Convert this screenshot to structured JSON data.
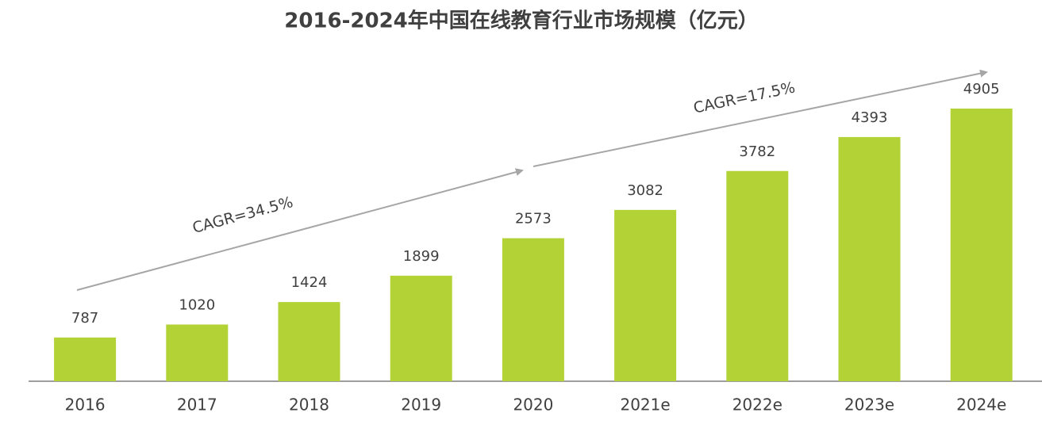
{
  "chart_data": {
    "type": "bar",
    "title": "2016-2024年中国在线教育行业市场规模（亿元）",
    "categories": [
      "2016",
      "2017",
      "2018",
      "2019",
      "2020",
      "2021e",
      "2022e",
      "2023e",
      "2024e"
    ],
    "values": [
      787,
      1020,
      1424,
      1899,
      2573,
      3082,
      3782,
      4393,
      4905
    ],
    "color": "#b2d235",
    "annotations": [
      "CAGR=34.5%",
      "CAGR=17.5%"
    ]
  }
}
